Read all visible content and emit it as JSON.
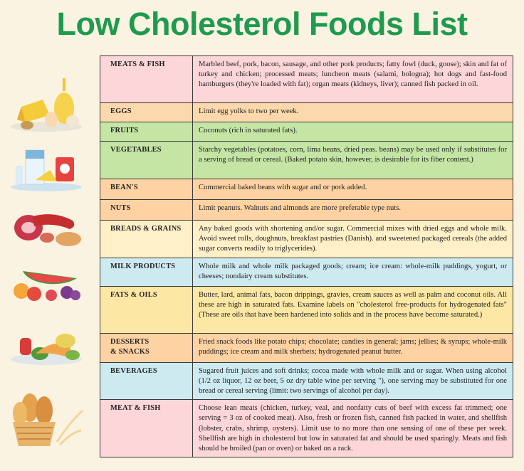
{
  "title": "Low Cholesterol Foods List",
  "rows": [
    {
      "category": "MEATS & FISH",
      "description": "Marbled beef, pork, bacon, sausage, and other pork products; fatty fowl (duck, goose); skin and fat of turkey and chicken; processed meats; luncheon meats (salami, bologna); hot dogs and fast-food hamburgers (they're loaded with fat); organ meats (kidneys, liver); canned fish packed  in oil."
    },
    {
      "category": "EGGS",
      "description": "Limit egg yolks to two per week."
    },
    {
      "category": "FRUITS",
      "description": "Coconuts (rich in saturated fats)."
    },
    {
      "category": "VEGETABLES",
      "description": "Starchy vegetables (potatoes, corn, lima beans, dried peas. beans) may be used only if substitutes for a serving of bread or cereal. (Baked potato skin, however, is desirable for its fiber content.)"
    },
    {
      "category": "BEAN'S",
      "description": "Commercial baked beans with sugar and or pork added."
    },
    {
      "category": "NUTS",
      "description": "Limit peanuts. Walnuts and almonds are more preferable type nuts."
    },
    {
      "category": "BREADS & GRAINS",
      "description": "Any baked goods with shortening and/or sugar. Commercial mixes with dried eggs and whole milk. Avoid sweet rolls, doughnuts, breakfast pastries (Danish). and sweetened packaged cereals (the added sugar converts readily to triglycerides)."
    },
    {
      "category": "MILK PRODUCTS",
      "description": "Whole milk and whole milk packaged goods; cream; ice cream: whole-milk puddings, yogurt, or cheeses; nondairy cream substitutes."
    },
    {
      "category": "FATS & OILS",
      "description": "Butter, lard, animal fats, bacon drippings, gravies, cream sauces as well as palm and coconut oils. All these are high in saturated fats. Examine labels on \"cholesterol free-products for hydrogenated fats\" (These are oils that have been hardened into solids and in the process have become saturated.)"
    },
    {
      "category": "DESSERTS\n& SNACKS",
      "description": "Fried snack foods like potato chips; chocolate; candies in general; jams; jellies; & syrups; whole-milk puddings; ice cream and milk sherbets; hydrogenated peanut butter."
    },
    {
      "category": "BEVERAGES",
      "description": "Sugared fruit juices and soft drinks; cocoa made with whole milk and or sugar. When using alcohol (1/2 oz liquor, 12 oz beer, 5 oz dry table wine per serving \"), one serving may be substituted for one bread or cereal serving (limit: two servings of alcohol per day)."
    },
    {
      "category": "MEAT & FISH",
      "description": "Choose lean meats (chicken, turkey, veal, and nonfatty cuts of beef with excess fat trimmed; one serving = 3 oz of cooked meat). Also, fresh or frozen fish, canned fish packed in water, and shellfish (lobster, crabs, shrimp, oysters). Limit use to no more than one sensing of one of these per week. Shellfish are high in cholesterol but low in saturated fat and should be used sparingly. Meats and fish should be broiled (pan or oven) or baked on a rack."
    }
  ],
  "illustrations": [
    "cheese-eggs-icon",
    "milk-yogurt-icon",
    "meat-sausage-icon",
    "fruit-icon",
    "vegetable-icon",
    "bread-basket-icon"
  ]
}
